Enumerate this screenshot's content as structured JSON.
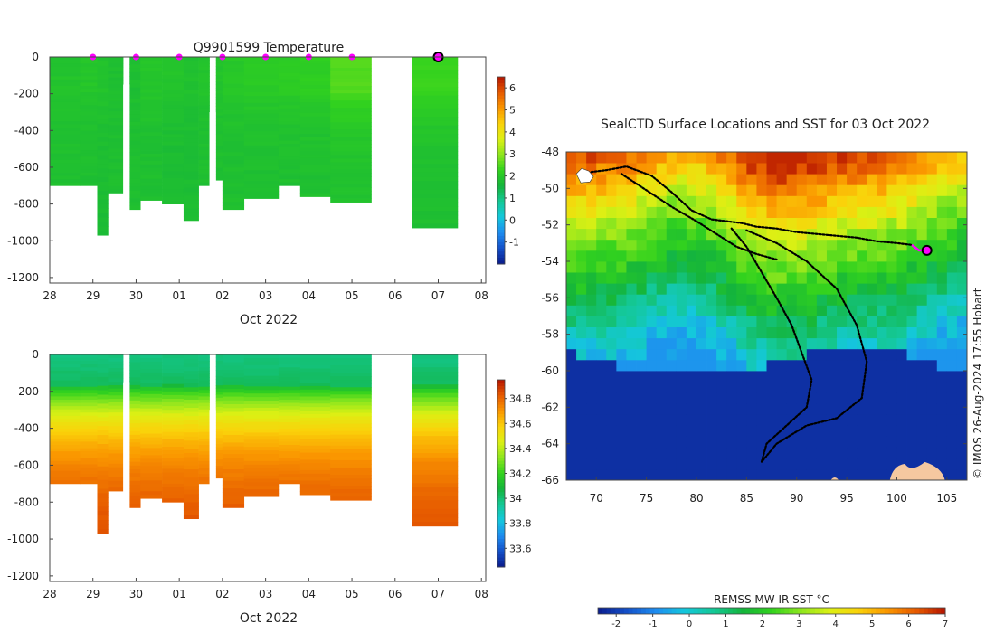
{
  "colors": {
    "palette_temp": [
      "#0a1c8c",
      "#1450c8",
      "#1e8cf0",
      "#14c8dc",
      "#14c896",
      "#14b43c",
      "#32d21e",
      "#8ce61e",
      "#dcf014",
      "#fad20a",
      "#fa9600",
      "#e65a00",
      "#b41400"
    ],
    "palette_sal": [
      "#0a1c8c",
      "#1450c8",
      "#1e8cf0",
      "#14c8dc",
      "#14c896",
      "#14b43c",
      "#32d21e",
      "#8ce61e",
      "#dcf014",
      "#fad20a",
      "#fa9600",
      "#e65a00",
      "#b41400"
    ],
    "palette_sst": [
      "#0a1c8c",
      "#1450c8",
      "#1e8cf0",
      "#14c8dc",
      "#14c896",
      "#14b43c",
      "#32d21e",
      "#8ce61e",
      "#dcf014",
      "#fad20a",
      "#fa9600",
      "#e65a00",
      "#b41400"
    ],
    "marker": "#ff00ff",
    "land": "#f5c8a0",
    "track": "#000000"
  },
  "chart_data": [
    {
      "type": "heatmap",
      "title": "Q9901599  Temperature",
      "xlabel": "Oct 2022",
      "ylabel": "",
      "x_ticks": [
        "28",
        "29",
        "30",
        "01",
        "02",
        "03",
        "04",
        "05",
        "06",
        "07",
        "08"
      ],
      "x_range": [
        0,
        10.1
      ],
      "y_ticks": [
        0,
        -200,
        -400,
        -600,
        -800,
        -1000,
        -1200
      ],
      "ylim": [
        -1230,
        0
      ],
      "colorbar": {
        "ticks": [
          -1,
          0,
          1,
          2,
          3,
          4,
          5,
          6
        ],
        "range": [
          -2,
          6.5
        ]
      },
      "profiles": [
        {
          "x0": 0.0,
          "x1": 0.7,
          "depth": 700,
          "surface": 1.9,
          "deep": 1.8
        },
        {
          "x0": 0.7,
          "x1": 1.1,
          "depth": 700,
          "surface": 1.95,
          "deep": 1.8
        },
        {
          "x0": 1.1,
          "x1": 1.35,
          "depth": 970,
          "surface": 1.9,
          "deep": 1.75
        },
        {
          "x0": 1.35,
          "x1": 1.7,
          "depth": 740,
          "surface": 1.8,
          "deep": 1.8
        },
        {
          "x0": 1.85,
          "x1": 2.1,
          "depth": 830,
          "surface": 1.8,
          "deep": 1.8
        },
        {
          "x0": 2.1,
          "x1": 2.6,
          "depth": 780,
          "surface": 1.95,
          "deep": 1.8
        },
        {
          "x0": 2.6,
          "x1": 3.1,
          "depth": 800,
          "surface": 1.9,
          "deep": 1.75
        },
        {
          "x0": 3.1,
          "x1": 3.45,
          "depth": 890,
          "surface": 1.85,
          "deep": 1.75
        },
        {
          "x0": 3.45,
          "x1": 3.7,
          "depth": 700,
          "surface": 1.9,
          "deep": 1.8
        },
        {
          "x0": 3.85,
          "x1": 4.0,
          "depth": 670,
          "surface": 1.9,
          "deep": 1.8
        },
        {
          "x0": 4.0,
          "x1": 4.5,
          "depth": 830,
          "surface": 2.0,
          "deep": 1.8
        },
        {
          "x0": 4.5,
          "x1": 5.3,
          "depth": 770,
          "surface": 2.05,
          "deep": 1.8
        },
        {
          "x0": 5.3,
          "x1": 5.8,
          "depth": 700,
          "surface": 2.1,
          "deep": 1.8
        },
        {
          "x0": 5.8,
          "x1": 6.5,
          "depth": 760,
          "surface": 2.15,
          "deep": 1.8
        },
        {
          "x0": 6.5,
          "x1": 7.45,
          "depth": 790,
          "surface": 2.5,
          "deep": 1.85
        },
        {
          "x0": 8.4,
          "x1": 9.45,
          "depth": 930,
          "surface": 2.3,
          "deep": 1.8
        }
      ],
      "gaps": [
        {
          "x0": 1.7,
          "x1": 1.85,
          "depth": 150
        },
        {
          "x0": 3.7,
          "x1": 3.85,
          "depth": 300
        }
      ],
      "surface_markers": [
        1,
        2,
        3,
        4,
        5,
        6,
        7
      ],
      "current_marker": 9
    },
    {
      "type": "heatmap",
      "title": "",
      "xlabel": "Oct 2022",
      "ylabel": "",
      "x_ticks": [
        "28",
        "29",
        "30",
        "01",
        "02",
        "03",
        "04",
        "05",
        "06",
        "07",
        "08"
      ],
      "x_range": [
        0,
        10.1
      ],
      "y_ticks": [
        0,
        -200,
        -400,
        -600,
        -800,
        -1000,
        -1200
      ],
      "ylim": [
        -1230,
        0
      ],
      "colorbar": {
        "ticks": [
          33.6,
          33.8,
          34,
          34.2,
          34.4,
          34.6,
          34.8
        ],
        "range": [
          33.45,
          34.95
        ]
      },
      "profiles": [
        {
          "x0": 0.0,
          "x1": 0.7,
          "depth": 700
        },
        {
          "x0": 0.7,
          "x1": 1.1,
          "depth": 700
        },
        {
          "x0": 1.1,
          "x1": 1.35,
          "depth": 970
        },
        {
          "x0": 1.35,
          "x1": 1.7,
          "depth": 740
        },
        {
          "x0": 1.85,
          "x1": 2.1,
          "depth": 830
        },
        {
          "x0": 2.1,
          "x1": 2.6,
          "depth": 780
        },
        {
          "x0": 2.6,
          "x1": 3.1,
          "depth": 800
        },
        {
          "x0": 3.1,
          "x1": 3.45,
          "depth": 890
        },
        {
          "x0": 3.45,
          "x1": 3.7,
          "depth": 700
        },
        {
          "x0": 3.85,
          "x1": 4.0,
          "depth": 670
        },
        {
          "x0": 4.0,
          "x1": 4.5,
          "depth": 830
        },
        {
          "x0": 4.5,
          "x1": 5.3,
          "depth": 770
        },
        {
          "x0": 5.3,
          "x1": 5.8,
          "depth": 700
        },
        {
          "x0": 5.8,
          "x1": 6.5,
          "depth": 760
        },
        {
          "x0": 6.5,
          "x1": 7.45,
          "depth": 790
        },
        {
          "x0": 8.4,
          "x1": 9.45,
          "depth": 930
        }
      ],
      "gaps": [
        {
          "x0": 1.7,
          "x1": 1.85,
          "depth": 150
        },
        {
          "x0": 3.7,
          "x1": 3.85,
          "depth": 300
        }
      ]
    },
    {
      "type": "heatmap",
      "title": "SealCTD Surface Locations and SST for 03 Oct 2022",
      "xlabel": "",
      "ylabel": "",
      "x_ticks": [
        70,
        75,
        80,
        85,
        90,
        95,
        100,
        105
      ],
      "xlim": [
        67,
        107
      ],
      "y_ticks": [
        -48,
        -50,
        -52,
        -54,
        -56,
        -58,
        -60,
        -62,
        -64,
        -66
      ],
      "ylim": [
        -66,
        -48
      ],
      "colorbar_label": "REMSS MW-IR SST °C",
      "colorbar": {
        "ticks": [
          -2,
          -1,
          0,
          1,
          2,
          3,
          4,
          5,
          6,
          7
        ],
        "range": [
          -2.5,
          7
        ]
      },
      "track": [
        [
          69.5,
          -49.1
        ],
        [
          71.0,
          -49.0
        ],
        [
          73.0,
          -48.8
        ],
        [
          75.5,
          -49.3
        ],
        [
          77.5,
          -50.2
        ],
        [
          79.5,
          -51.2
        ],
        [
          81.5,
          -51.7
        ],
        [
          83.0,
          -51.8
        ],
        [
          84.5,
          -51.9
        ],
        [
          86.0,
          -52.1
        ],
        [
          88.0,
          -52.2
        ],
        [
          90.0,
          -52.4
        ],
        [
          92.0,
          -52.5
        ],
        [
          94.0,
          -52.6
        ],
        [
          96.0,
          -52.7
        ],
        [
          98.0,
          -52.9
        ],
        [
          100.0,
          -53.0
        ],
        [
          101.5,
          -53.1
        ]
      ],
      "track_south": [
        [
          83.5,
          -52.2
        ],
        [
          85.0,
          -53.2
        ],
        [
          86.5,
          -54.6
        ],
        [
          88.0,
          -56.0
        ],
        [
          89.5,
          -57.5
        ],
        [
          90.5,
          -59.0
        ],
        [
          91.5,
          -60.5
        ],
        [
          91.0,
          -62.0
        ],
        [
          89.0,
          -63.0
        ],
        [
          87.0,
          -64.0
        ],
        [
          86.5,
          -65.0
        ],
        [
          88.0,
          -64.0
        ],
        [
          91.0,
          -63.0
        ],
        [
          94.0,
          -62.6
        ],
        [
          96.5,
          -61.5
        ],
        [
          97.0,
          -59.5
        ],
        [
          96.0,
          -57.5
        ],
        [
          94.0,
          -55.5
        ],
        [
          91.0,
          -54.0
        ],
        [
          88.0,
          -53.0
        ],
        [
          85.0,
          -52.3
        ]
      ],
      "track_north": [
        [
          72.5,
          -49.2
        ],
        [
          75.0,
          -50.1
        ],
        [
          77.5,
          -51.0
        ],
        [
          80.0,
          -51.8
        ],
        [
          82.0,
          -52.5
        ],
        [
          84.0,
          -53.2
        ],
        [
          86.0,
          -53.6
        ],
        [
          88.0,
          -53.9
        ]
      ],
      "recent_track": [
        [
          101.5,
          -53.1
        ],
        [
          102.2,
          -53.4
        ],
        [
          103.0,
          -53.4
        ]
      ],
      "current_position": [
        103.0,
        -53.4
      ],
      "credit": "© IMOS 26-Aug-2024 17:55 Hobart"
    }
  ]
}
